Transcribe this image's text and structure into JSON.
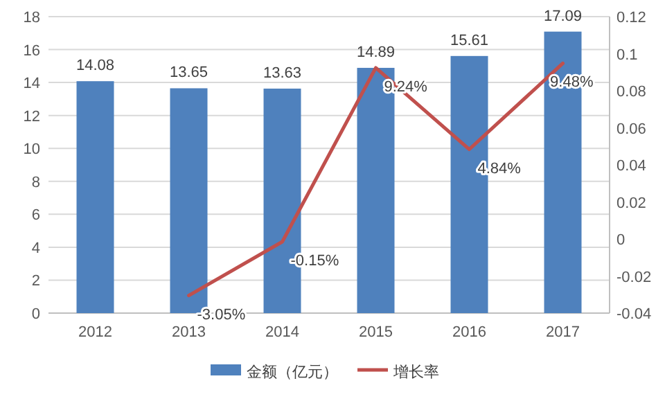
{
  "chart_data": {
    "type": "bar",
    "categories": [
      "2012",
      "2013",
      "2014",
      "2015",
      "2016",
      "2017"
    ],
    "series": [
      {
        "name": "金额（亿元）",
        "color": "#4f81bd",
        "values": [
          14.08,
          13.65,
          13.63,
          14.89,
          15.61,
          17.09
        ],
        "value_labels": [
          "14.08",
          "13.65",
          "13.63",
          "14.89",
          "15.61",
          "17.09"
        ]
      },
      {
        "name": "增长率",
        "type": "line",
        "axis": "y2",
        "color": "#c0504d",
        "values": [
          null,
          -0.0305,
          -0.0015,
          0.0924,
          0.0484,
          0.0948
        ],
        "value_labels": [
          null,
          "-3.05%",
          "-0.15%",
          "9.24%",
          "4.84%",
          "9.48%"
        ]
      }
    ],
    "ylim": [
      0,
      18
    ],
    "yticks": [
      0,
      2,
      4,
      6,
      8,
      10,
      12,
      14,
      16,
      18
    ],
    "y2lim": [
      -0.04,
      0.12
    ],
    "y2ticks": [
      -0.04,
      -0.02,
      0,
      0.02,
      0.04,
      0.06,
      0.08,
      0.1,
      0.12
    ],
    "grid": "y",
    "legend": "bottom",
    "marker": "none",
    "line_style": "solid"
  }
}
